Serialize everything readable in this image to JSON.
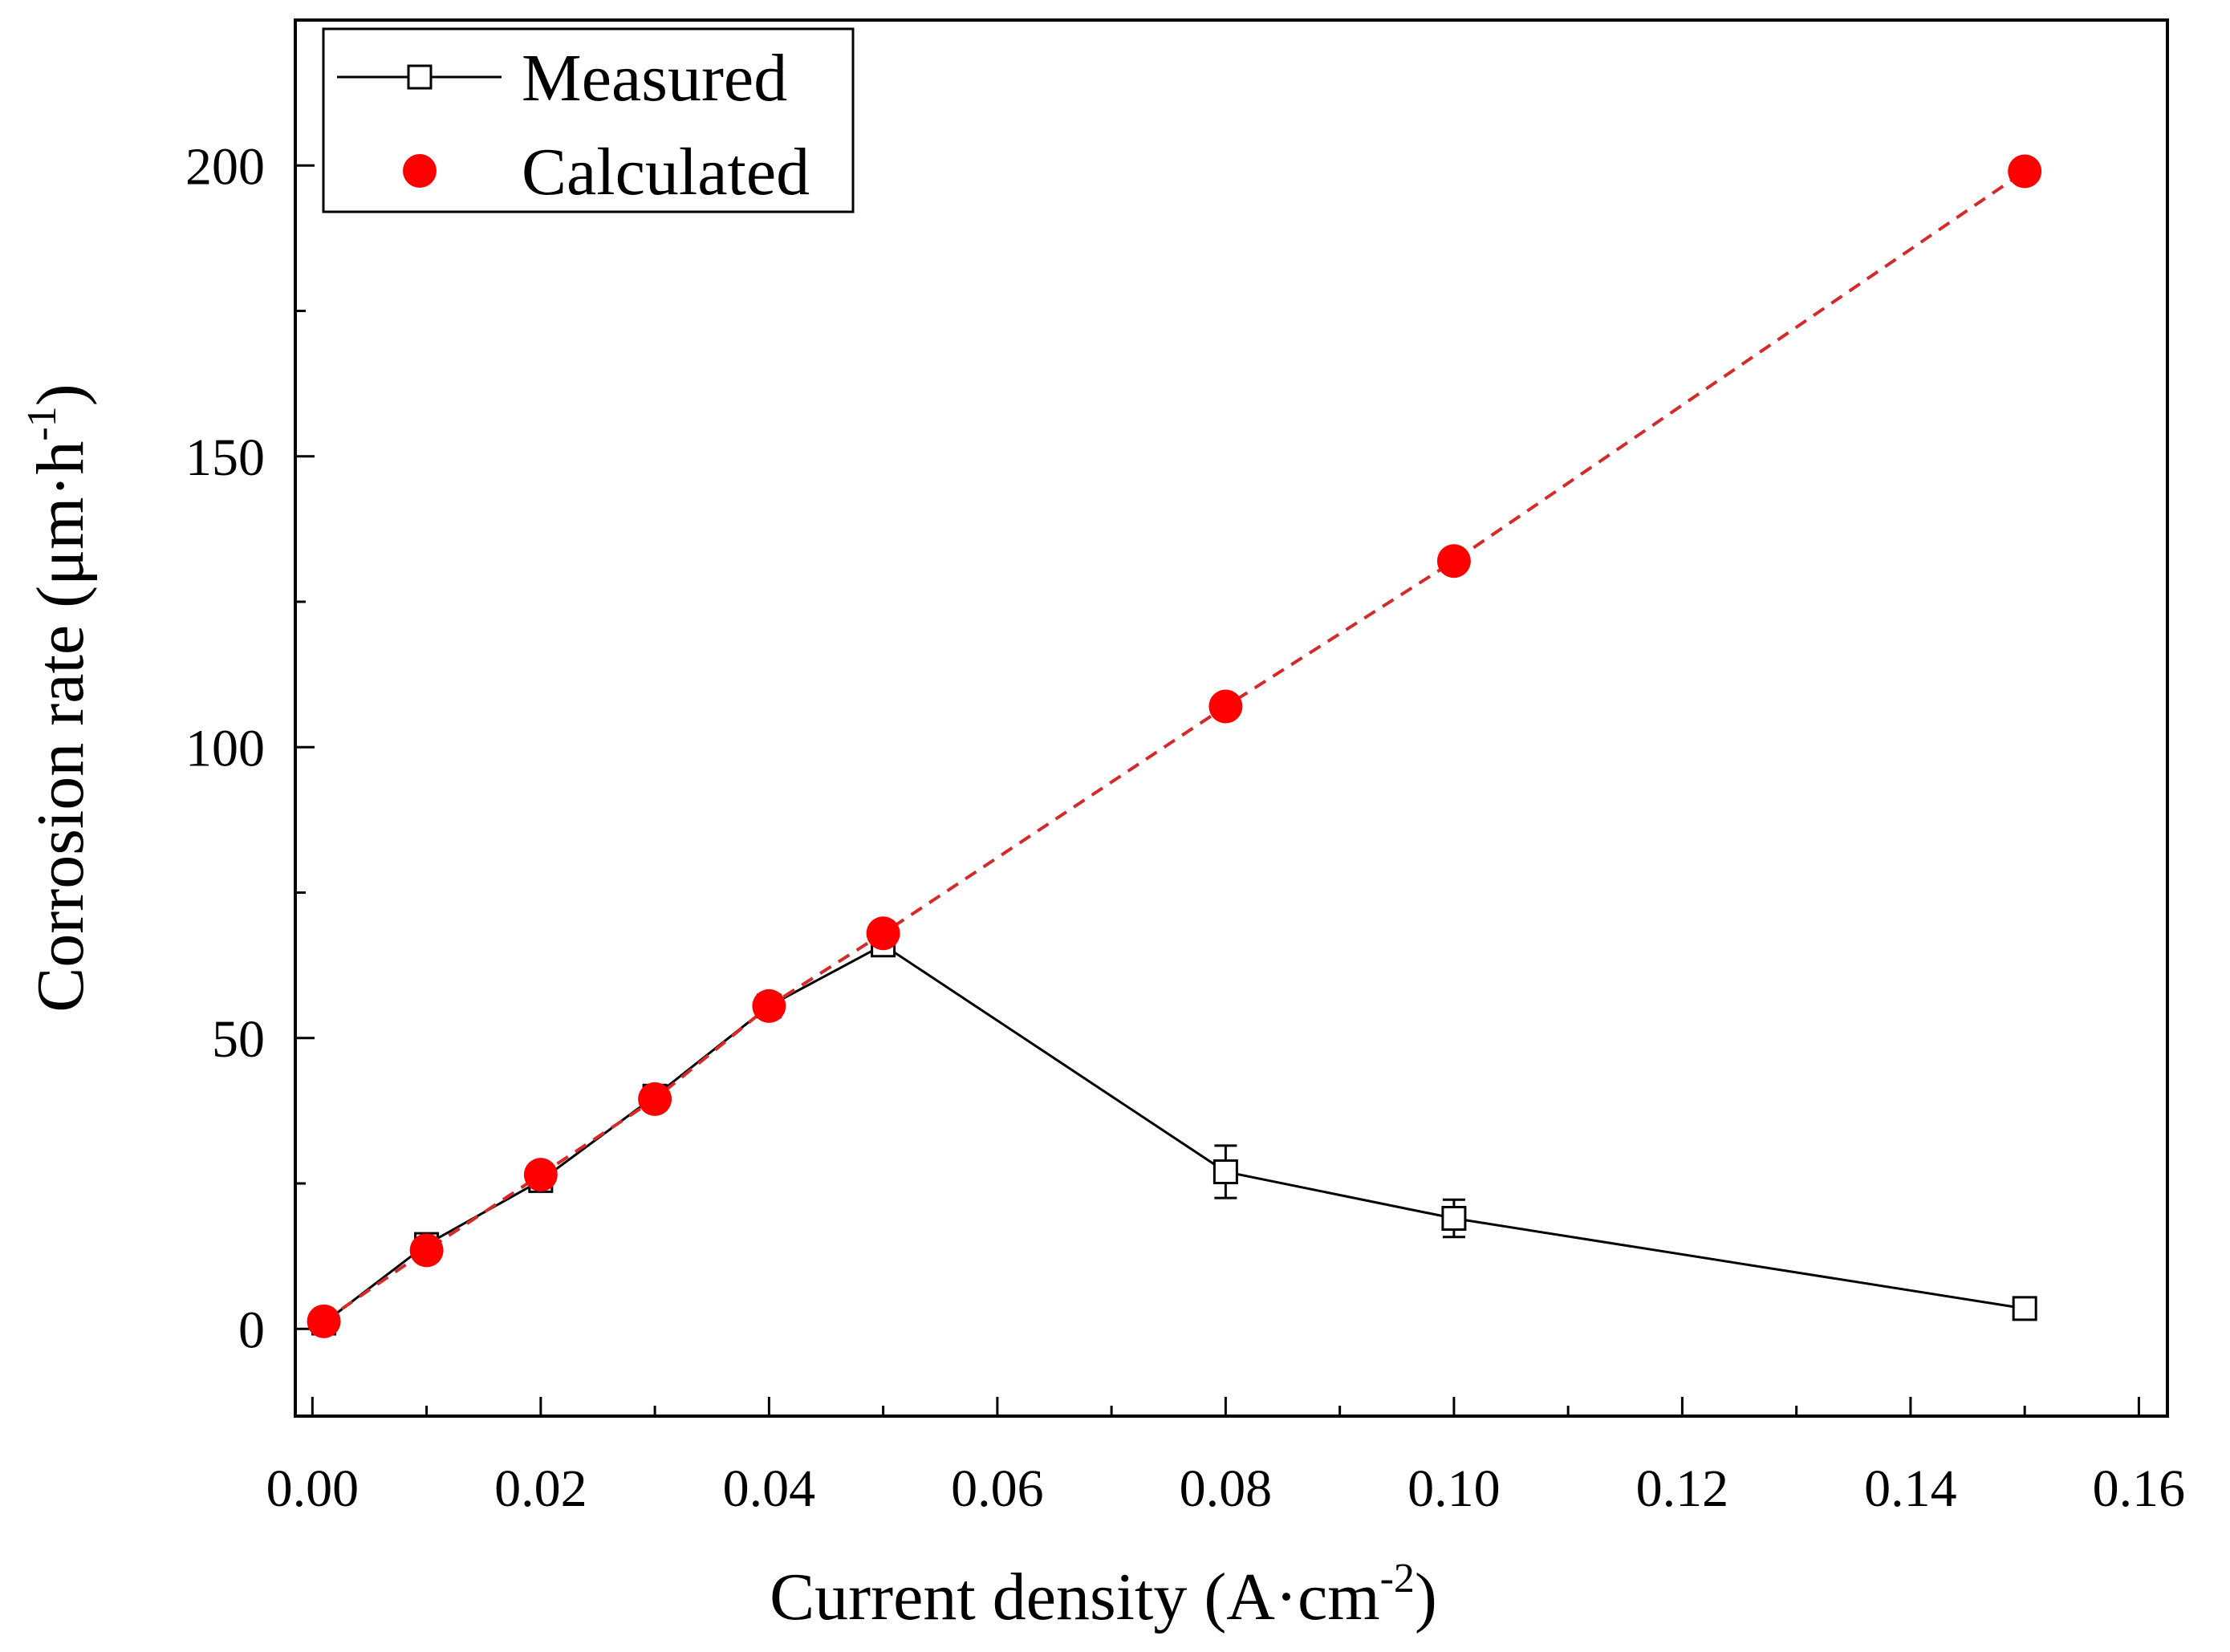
{
  "chart_data": {
    "type": "line",
    "title": "",
    "xlabel": "Current density (A·cm",
    "xlabel_sup": "-2",
    "xlabel_close": ")",
    "ylabel": "Corrosion rate (μm·h",
    "ylabel_sup": "-1",
    "ylabel_close": ")",
    "xlim": [
      -0.0015,
      0.1625
    ],
    "ylim": [
      -15,
      225
    ],
    "xticks": [
      0.0,
      0.02,
      0.04,
      0.06,
      0.08,
      0.1,
      0.12,
      0.14,
      0.16
    ],
    "xtick_labels": [
      "0.00",
      "0.02",
      "0.04",
      "0.06",
      "0.08",
      "0.10",
      "0.12",
      "0.14",
      "0.16"
    ],
    "yticks": [
      0,
      50,
      100,
      150,
      200
    ],
    "ytick_labels": [
      "0",
      "50",
      "100",
      "150",
      "200"
    ],
    "legend_position": "top-left",
    "series": [
      {
        "name": "Measured",
        "style": "solid line, open square markers, error bars",
        "color": "#000000",
        "x": [
          0.001,
          0.01,
          0.02,
          0.03,
          0.04,
          0.05,
          0.08,
          0.1,
          0.15
        ],
        "y": [
          1,
          14.5,
          25.5,
          40,
          55.5,
          66,
          27,
          19,
          3.5
        ],
        "error": [
          0.6,
          1.2,
          1.2,
          1.5,
          1.2,
          1.2,
          4.5,
          3.2,
          1.5
        ]
      },
      {
        "name": "Calculated",
        "style": "red dashed line, filled circle markers",
        "color": "#ff0000",
        "line_color": "#d42a2a",
        "x": [
          0.001,
          0.01,
          0.02,
          0.03,
          0.04,
          0.05,
          0.08,
          0.1,
          0.15
        ],
        "y": [
          1.3,
          13.5,
          26.5,
          39.5,
          55.5,
          68,
          107,
          132,
          199
        ]
      }
    ]
  }
}
